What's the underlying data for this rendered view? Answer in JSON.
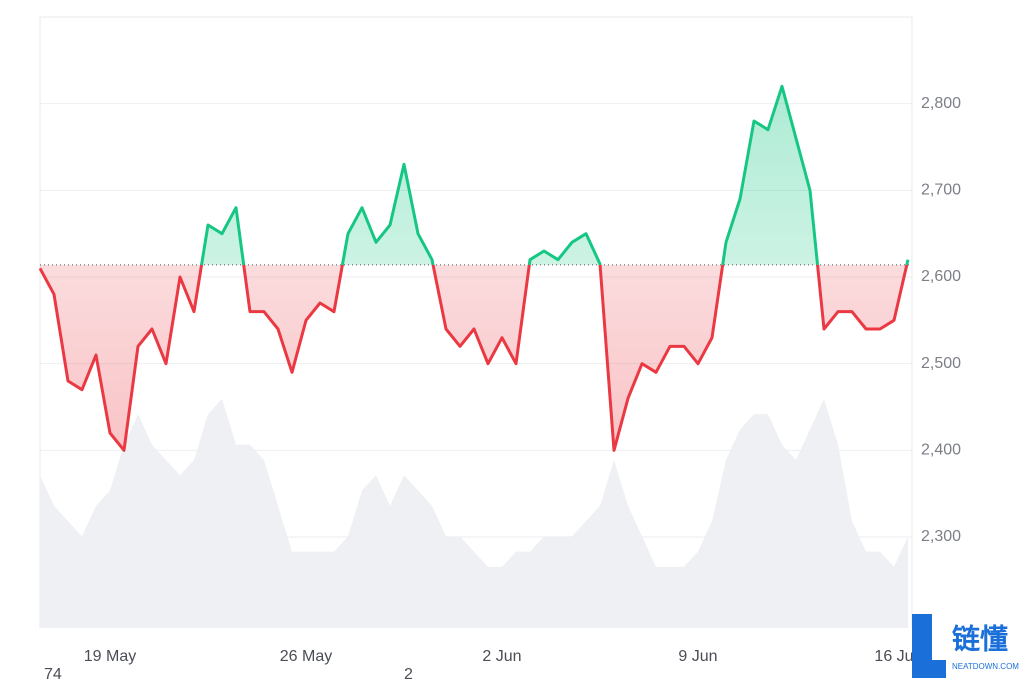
{
  "chart_data": {
    "type": "line",
    "categories": [
      null,
      null,
      null,
      null,
      null,
      "19 May",
      null,
      null,
      null,
      null,
      null,
      null,
      null,
      null,
      null,
      null,
      null,
      null,
      null,
      "26 May",
      null,
      null,
      null,
      null,
      null,
      null,
      null,
      null,
      null,
      null,
      null,
      null,
      null,
      "2 Jun",
      null,
      null,
      null,
      null,
      null,
      null,
      null,
      null,
      null,
      null,
      null,
      null,
      null,
      "9 Jun",
      null,
      null,
      null,
      null,
      null,
      null,
      null,
      null,
      null,
      null,
      null,
      null,
      null,
      "16 Ju",
      null
    ],
    "baseline": 2614,
    "series": [
      {
        "name": "Price",
        "values": [
          2610,
          2580,
          2480,
          2470,
          2510,
          2420,
          2400,
          2520,
          2540,
          2500,
          2600,
          2560,
          2660,
          2650,
          2680,
          2560,
          2560,
          2540,
          2490,
          2550,
          2570,
          2560,
          2650,
          2680,
          2640,
          2660,
          2730,
          2650,
          2620,
          2540,
          2520,
          2540,
          2500,
          2530,
          2500,
          2620,
          2630,
          2620,
          2640,
          2650,
          2615,
          2400,
          2460,
          2500,
          2490,
          2520,
          2520,
          2500,
          2530,
          2640,
          2690,
          2780,
          2770,
          2820,
          2760,
          2700,
          2540,
          2560,
          2560,
          2540,
          2540,
          2550,
          2620
        ]
      },
      {
        "name": "Volume",
        "values": [
          50,
          40,
          35,
          30,
          40,
          45,
          60,
          70,
          60,
          55,
          50,
          55,
          70,
          75,
          60,
          60,
          55,
          40,
          25,
          25,
          25,
          25,
          30,
          45,
          50,
          40,
          50,
          45,
          40,
          30,
          30,
          25,
          20,
          20,
          25,
          25,
          30,
          30,
          30,
          35,
          40,
          55,
          40,
          30,
          20,
          20,
          20,
          25,
          35,
          55,
          65,
          70,
          70,
          60,
          55,
          65,
          75,
          60,
          35,
          25,
          25,
          20,
          30
        ]
      }
    ],
    "up_color": "#16c784",
    "down_color": "#ea3943",
    "volume_color": "#eef0f3",
    "ylim": [
      2195,
      2900
    ],
    "yticks": [
      {
        "value": 2300,
        "label": "2,300"
      },
      {
        "value": 2400,
        "label": "2,400"
      },
      {
        "value": 2500,
        "label": "2,500"
      },
      {
        "value": 2600,
        "label": "2,600"
      },
      {
        "value": 2700,
        "label": "2,700"
      },
      {
        "value": 2800,
        "label": "2,800"
      }
    ],
    "volume_lim": [
      0,
      200
    ],
    "grid": true,
    "footer_labels": [
      "74",
      "2"
    ]
  },
  "watermark": {
    "title": "链懂",
    "subtitle": "NEATDOWN.COM"
  }
}
